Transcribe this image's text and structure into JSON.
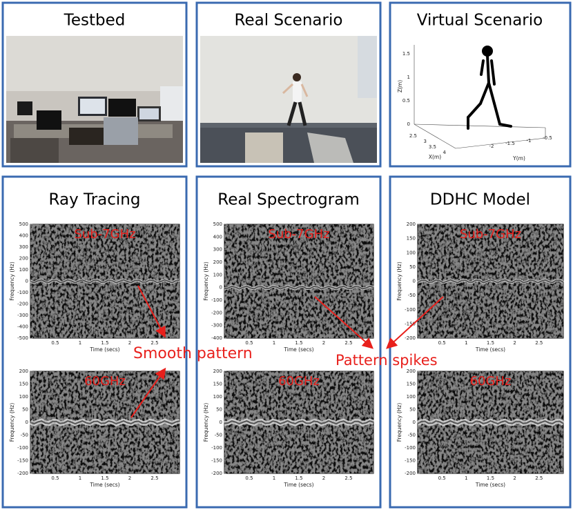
{
  "top": [
    {
      "title": "Testbed"
    },
    {
      "title": "Real Scenario"
    },
    {
      "title": "Virtual Scenario"
    }
  ],
  "skeleton": {
    "z_label": "Z(m)",
    "x_label": "X(m)",
    "y_label": "Y(m)",
    "z_ticks": [
      0,
      0.5,
      1,
      1.5
    ],
    "x_ticks": [
      2.5,
      3,
      3.5,
      4
    ],
    "y_ticks": [
      -2,
      -1.5,
      -1,
      -0.5
    ]
  },
  "columns": [
    {
      "title": "Ray Tracing",
      "plots": [
        {
          "band": "Sub-7GHz",
          "xlabel": "Time (secs)",
          "ylabel": "Frequency (Hz)",
          "xticks": [
            0.5,
            1,
            1.5,
            2,
            2.5
          ],
          "yticks": [
            500,
            400,
            300,
            200,
            100,
            0,
            -100,
            -200,
            -300,
            -400,
            -500
          ]
        },
        {
          "band": "60GHz",
          "xlabel": "Time (secs)",
          "ylabel": "Frequency (Hz)",
          "xticks": [
            0.5,
            1,
            1.5,
            2,
            2.5
          ],
          "yticks": [
            200,
            150,
            100,
            50,
            0,
            -50,
            -100,
            -150,
            -200
          ]
        }
      ]
    },
    {
      "title": "Real Spectrogram",
      "plots": [
        {
          "band": "Sub-7GHz",
          "xlabel": "Time (secs)",
          "ylabel": "Frequency (Hz)",
          "xticks": [
            0.5,
            1,
            1.5,
            2,
            2.5
          ],
          "yticks": [
            500,
            400,
            300,
            200,
            100,
            0,
            -100,
            -200,
            -300,
            -400
          ]
        },
        {
          "band": "60GHz",
          "xlabel": "Time (secs)",
          "ylabel": "Frequency (Hz)",
          "xticks": [
            0.5,
            1,
            1.5,
            2,
            2.5
          ],
          "yticks": [
            200,
            150,
            100,
            50,
            0,
            -50,
            -100,
            -150,
            -200
          ]
        }
      ]
    },
    {
      "title": "DDHC Model",
      "plots": [
        {
          "band": "Sub-7GHz",
          "xlabel": "Time (secs)",
          "ylabel": "Frequency (Hz)",
          "xticks": [
            0.5,
            1,
            1.5,
            2,
            2.5
          ],
          "yticks": [
            200,
            150,
            100,
            50,
            0,
            -50,
            -100,
            -150,
            -200
          ]
        },
        {
          "band": "60GHz",
          "xlabel": "Time (secs)",
          "ylabel": "Frequency (Hz)",
          "xticks": [
            0.5,
            1,
            1.5,
            2,
            2.5
          ],
          "yticks": [
            200,
            150,
            100,
            50,
            0,
            -50,
            -100,
            -150,
            -200
          ]
        }
      ]
    }
  ],
  "annotations": {
    "smooth": "Smooth pattern",
    "spikes": "Pattern spikes"
  }
}
